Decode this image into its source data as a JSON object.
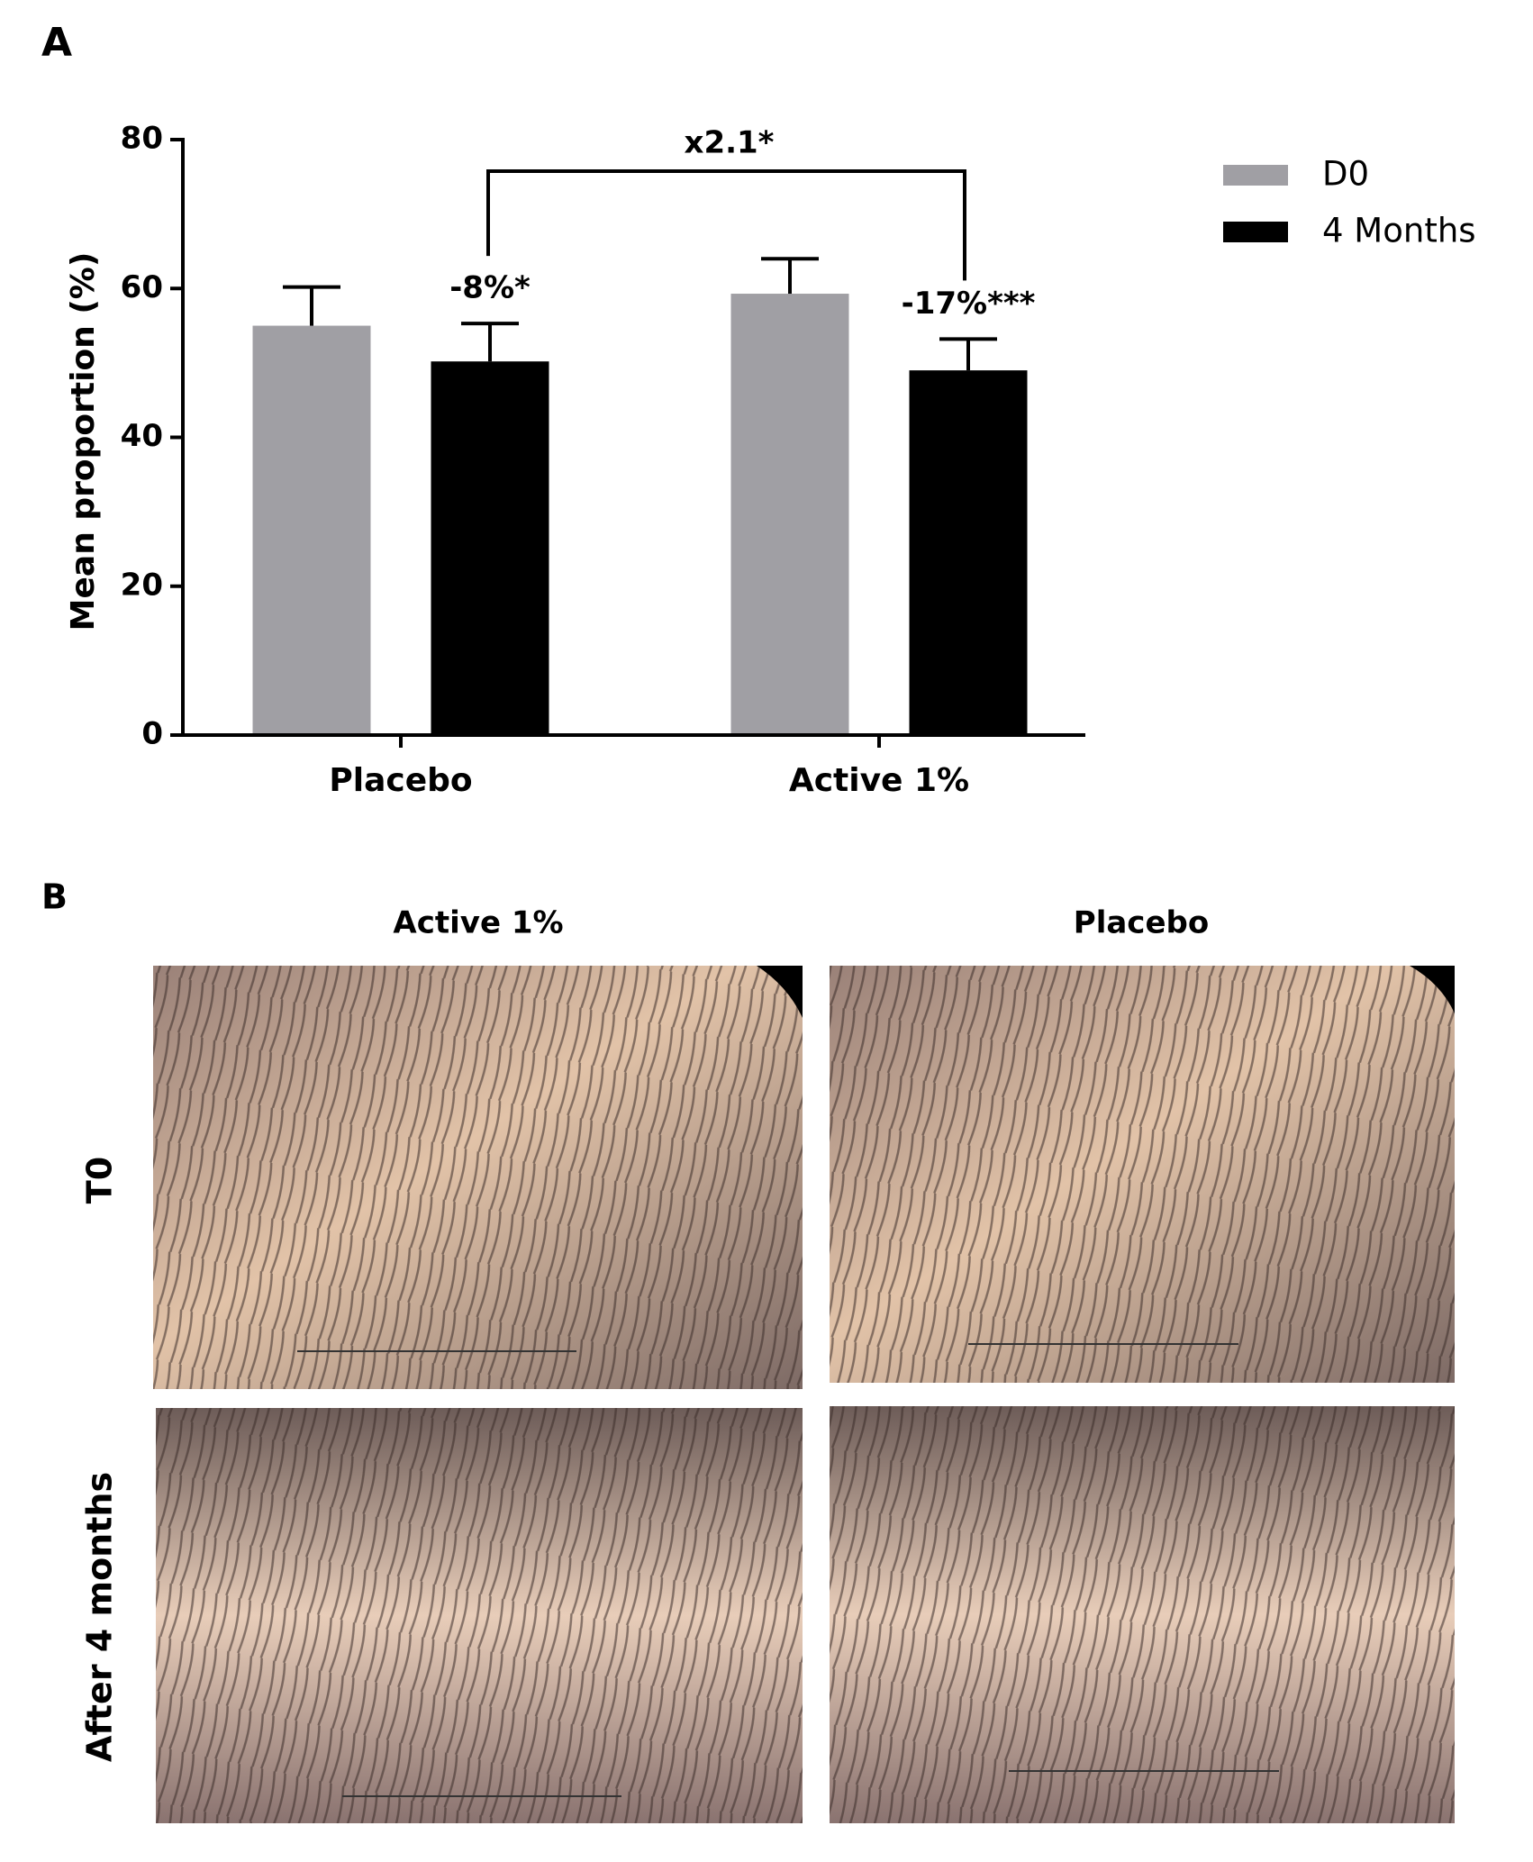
{
  "panel_a_label": "A",
  "chart_data": {
    "type": "bar",
    "ylabel": "Mean proportion (%)",
    "categories": [
      "Placebo",
      "Active 1%"
    ],
    "series": [
      {
        "name": "D0",
        "color": "#a09fa4",
        "values": [
          55,
          59.3
        ],
        "errors": [
          5.2,
          4.7
        ]
      },
      {
        "name": "4 Months",
        "color": "#000000",
        "values": [
          50.2,
          49
        ],
        "errors": [
          5.1,
          4.2
        ]
      }
    ],
    "ylim": [
      0,
      80
    ],
    "yticks": [
      0,
      20,
      40,
      60,
      80
    ],
    "grid": false,
    "legend": "top-right",
    "annotations": [
      "-8%*",
      "-17%***"
    ],
    "bracket_label": "x2.1*"
  },
  "panel_b": {
    "label": "B",
    "columns": [
      "Active 1%",
      "Placebo"
    ],
    "rows": [
      "T0",
      "After 4 months"
    ]
  }
}
